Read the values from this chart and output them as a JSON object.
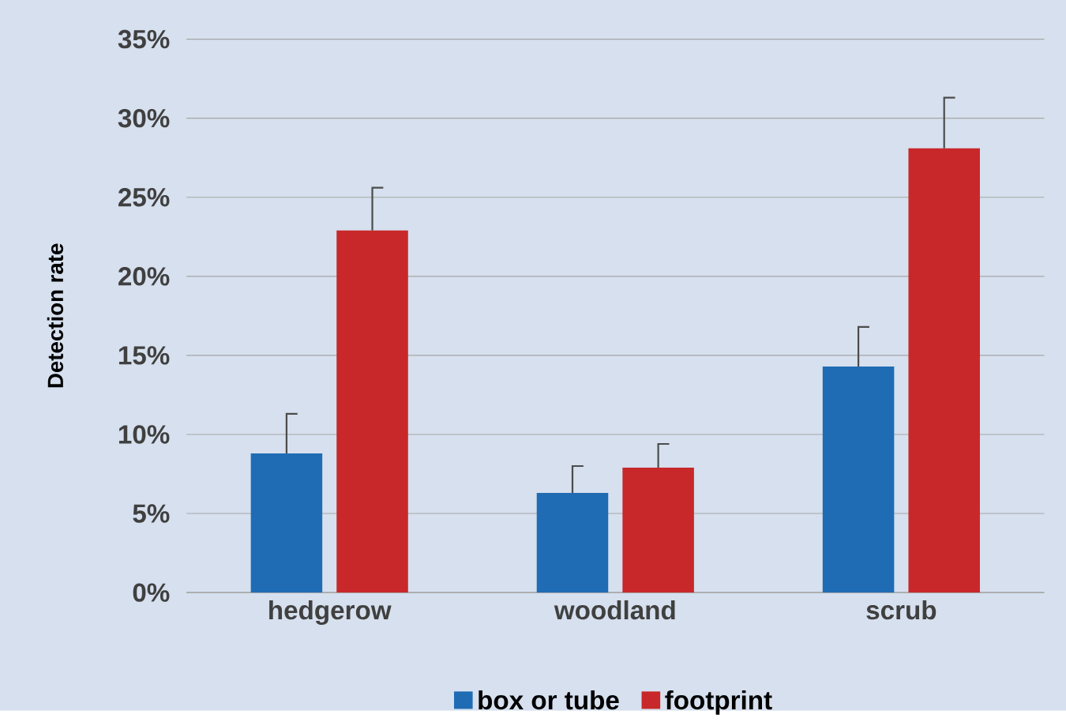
{
  "chart_data": {
    "type": "bar",
    "ylabel": "Detection rate",
    "categories": [
      "hedgerow",
      "woodland",
      "scrub"
    ],
    "series": [
      {
        "name": "box or tube",
        "color": "#1f6cb4",
        "values": [
          8.8,
          6.3,
          14.3
        ],
        "errors": [
          [
            8.8,
            11.3
          ],
          [
            6.3,
            8.0
          ],
          [
            14.3,
            16.8
          ]
        ]
      },
      {
        "name": "footprint",
        "color": "#c8282a",
        "values": [
          22.9,
          7.9,
          28.1
        ],
        "errors": [
          [
            22.9,
            25.6
          ],
          [
            7.9,
            9.4
          ],
          [
            28.1,
            31.3
          ]
        ]
      }
    ],
    "ylim": [
      0,
      35
    ],
    "yticks": [
      {
        "value": 0,
        "label": "0%"
      },
      {
        "value": 5,
        "label": "5%"
      },
      {
        "value": 10,
        "label": "10%"
      },
      {
        "value": 15,
        "label": "15%"
      },
      {
        "value": 20,
        "label": "20%"
      },
      {
        "value": 25,
        "label": "25%"
      },
      {
        "value": 30,
        "label": "30%"
      },
      {
        "value": 35,
        "label": "35%"
      }
    ],
    "grid": "y",
    "legend": "bottom"
  }
}
